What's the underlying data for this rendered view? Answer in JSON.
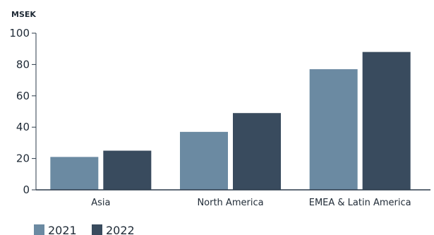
{
  "chart_data": {
    "type": "bar",
    "ylabel": "MSEK",
    "ylim": [
      0,
      100
    ],
    "yticks": [
      0,
      20,
      40,
      60,
      80,
      100
    ],
    "grid": false,
    "legend_position": "bottom-left",
    "categories": [
      "Asia",
      "North America",
      "EMEA & Latin America"
    ],
    "series": [
      {
        "name": "2021",
        "color": "#6b8aa2",
        "values": [
          21,
          37,
          77
        ]
      },
      {
        "name": "2022",
        "color": "#394b5e",
        "values": [
          25,
          49,
          88
        ]
      }
    ]
  }
}
